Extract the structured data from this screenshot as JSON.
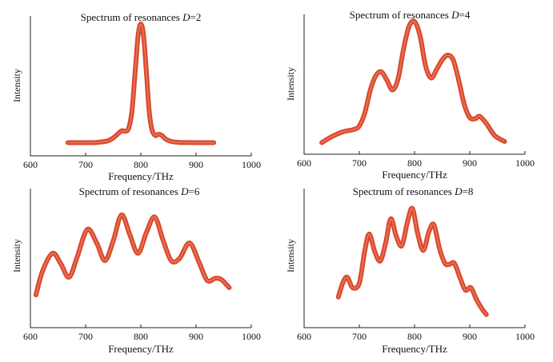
{
  "colors": {
    "curve": "#d9482b",
    "curve_highlight": "#e8735a",
    "axis": "#222222"
  },
  "chart_data": [
    {
      "type": "line",
      "title": "Spectrum of resonances ",
      "title_var": "D",
      "title_eq": "=2",
      "xlabel": "Frequency/THz",
      "ylabel": "Intensity",
      "xlim": [
        600,
        1000
      ],
      "ylim": [
        0,
        1.05
      ],
      "xticks": [
        600,
        700,
        800,
        900,
        1000
      ],
      "grid": false,
      "series": [
        {
          "x": [
            668,
            700,
            720,
            740,
            750,
            760,
            766,
            772,
            778,
            784,
            790,
            795,
            800,
            805,
            810,
            815,
            820,
            826,
            832,
            838,
            845,
            855,
            870,
            900,
            932
          ],
          "values": [
            0.01,
            0.01,
            0.012,
            0.025,
            0.05,
            0.09,
            0.11,
            0.105,
            0.13,
            0.28,
            0.62,
            0.9,
            1.0,
            0.9,
            0.6,
            0.28,
            0.12,
            0.07,
            0.08,
            0.07,
            0.04,
            0.02,
            0.012,
            0.01,
            0.01
          ]
        }
      ]
    },
    {
      "type": "line",
      "title": "Spectrum of resonances ",
      "title_var": "D",
      "title_eq": "=4",
      "xlabel": "Frequency/THz",
      "ylabel": "Intensity",
      "xlim": [
        600,
        1000
      ],
      "ylim": [
        0,
        1.05
      ],
      "xticks": [
        600,
        700,
        800,
        900,
        1000
      ],
      "grid": false,
      "series": [
        {
          "x": [
            632,
            650,
            670,
            690,
            700,
            710,
            720,
            730,
            740,
            750,
            760,
            770,
            780,
            790,
            800,
            810,
            820,
            830,
            840,
            850,
            860,
            870,
            880,
            890,
            900,
            910,
            918,
            930,
            945,
            963
          ],
          "values": [
            0.01,
            0.06,
            0.1,
            0.12,
            0.15,
            0.26,
            0.45,
            0.57,
            0.6,
            0.53,
            0.45,
            0.54,
            0.79,
            0.98,
            1.02,
            0.9,
            0.65,
            0.55,
            0.62,
            0.7,
            0.74,
            0.7,
            0.53,
            0.33,
            0.22,
            0.21,
            0.23,
            0.17,
            0.07,
            0.02
          ]
        }
      ]
    },
    {
      "type": "line",
      "title": "Spectrum of resonances ",
      "title_var": "D",
      "title_eq": "=6",
      "xlabel": "Frequency/THz",
      "ylabel": "Intensity",
      "xlim": [
        600,
        1000
      ],
      "ylim": [
        0,
        1.05
      ],
      "xticks": [
        600,
        700,
        800,
        900,
        1000
      ],
      "grid": false,
      "series": [
        {
          "x": [
            610,
            622,
            640,
            655,
            670,
            685,
            703,
            720,
            735,
            750,
            765,
            780,
            795,
            810,
            825,
            840,
            855,
            870,
            888,
            905,
            920,
            935,
            945,
            955,
            960
          ],
          "values": [
            0.1,
            0.33,
            0.5,
            0.4,
            0.27,
            0.47,
            0.73,
            0.6,
            0.43,
            0.62,
            0.87,
            0.68,
            0.5,
            0.7,
            0.85,
            0.63,
            0.43,
            0.45,
            0.6,
            0.42,
            0.24,
            0.26,
            0.25,
            0.2,
            0.17
          ]
        }
      ]
    },
    {
      "type": "line",
      "title": "Spectrum of resonances ",
      "title_var": "D",
      "title_eq": "=8",
      "xlabel": "Frequency/THz",
      "ylabel": "Intensity",
      "xlim": [
        600,
        1000
      ],
      "ylim": [
        0,
        1.05
      ],
      "xticks": [
        600,
        700,
        800,
        900,
        1000
      ],
      "grid": false,
      "series": [
        {
          "x": [
            662,
            670,
            678,
            688,
            700,
            710,
            718,
            728,
            738,
            748,
            757,
            767,
            777,
            787,
            796,
            806,
            816,
            826,
            835,
            845,
            855,
            863,
            872,
            882,
            892,
            902,
            912,
            922,
            930
          ],
          "values": [
            0.18,
            0.3,
            0.35,
            0.26,
            0.3,
            0.58,
            0.72,
            0.57,
            0.49,
            0.65,
            0.85,
            0.7,
            0.62,
            0.82,
            0.94,
            0.72,
            0.58,
            0.74,
            0.8,
            0.6,
            0.47,
            0.46,
            0.47,
            0.35,
            0.24,
            0.26,
            0.16,
            0.08,
            0.03
          ]
        }
      ]
    }
  ]
}
